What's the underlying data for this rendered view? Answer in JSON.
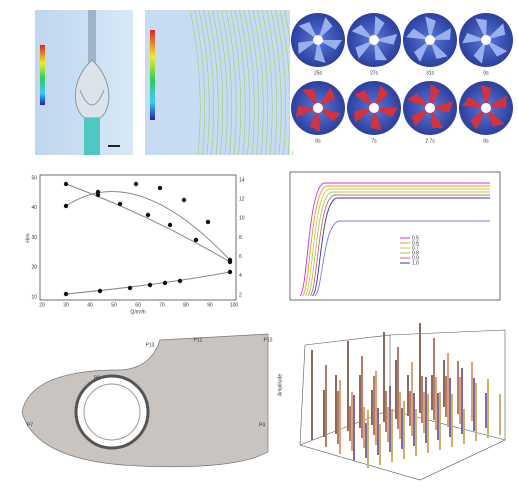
{
  "impeller_grid": {
    "labels": [
      "25s",
      "27s",
      "31s",
      "0s",
      "0s",
      "7s",
      "2.7s",
      "0s"
    ]
  },
  "head_chart": {
    "y_label": "H/m",
    "x_label": "Q/m³/h",
    "y_ticks": [
      "50",
      "40",
      "30",
      "20",
      "10"
    ],
    "y2_ticks": [
      "14",
      "12",
      "10",
      "8",
      "6",
      "4",
      "2"
    ],
    "x_ticks": [
      "20",
      "30",
      "40",
      "50",
      "60",
      "70",
      "80",
      "90",
      "100"
    ]
  },
  "transient_chart": {
    "legend": [
      "0.5",
      "0.6",
      "0.7",
      "0.8",
      "0.9",
      "1.0"
    ]
  },
  "volute": {
    "labels": [
      "P13",
      "P12",
      "P10",
      "P9",
      "P7",
      "P4"
    ]
  },
  "waterfall": {
    "z_label": "Amplitude"
  }
}
